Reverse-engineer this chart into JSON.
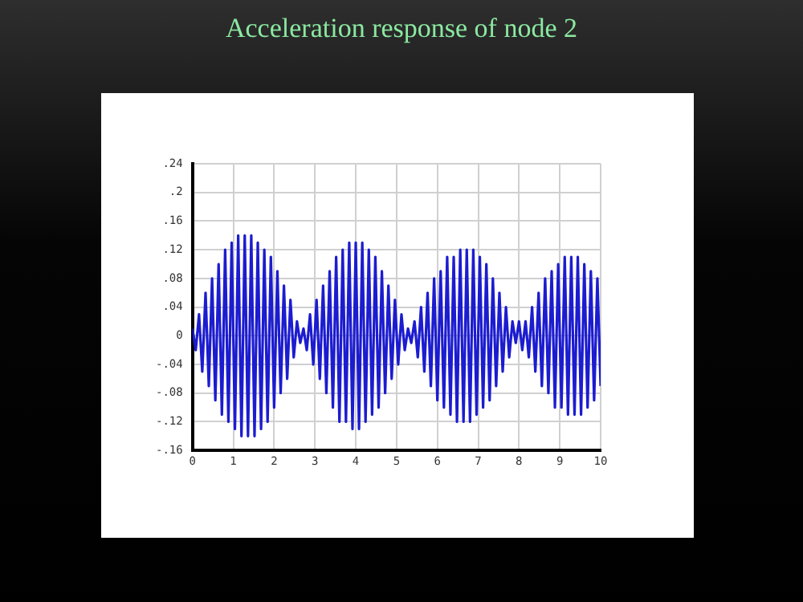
{
  "chart_data": {
    "type": "line",
    "title": "Acceleration response of node 2",
    "x": [
      0,
      0.08,
      0.16,
      0.24,
      0.32,
      0.4,
      0.48,
      0.56,
      0.64,
      0.72,
      0.8,
      0.88,
      0.96,
      1.04,
      1.12,
      1.2,
      1.28,
      1.36,
      1.44,
      1.52,
      1.6,
      1.68,
      1.76,
      1.84,
      1.92,
      2,
      2.08,
      2.16,
      2.24,
      2.32,
      2.4,
      2.48,
      2.56,
      2.64,
      2.72,
      2.8,
      2.88,
      2.96,
      3.04,
      3.12,
      3.2,
      3.28,
      3.36,
      3.44,
      3.52,
      3.6,
      3.68,
      3.76,
      3.84,
      3.92,
      4,
      4.08,
      4.16,
      4.24,
      4.32,
      4.4,
      4.48,
      4.56,
      4.64,
      4.72,
      4.8,
      4.88,
      4.96,
      5.04,
      5.12,
      5.2,
      5.28,
      5.36,
      5.44,
      5.52,
      5.6,
      5.68,
      5.76,
      5.84,
      5.92,
      6,
      6.08,
      6.16,
      6.24,
      6.32,
      6.4,
      6.48,
      6.56,
      6.64,
      6.72,
      6.8,
      6.88,
      6.96,
      7.04,
      7.12,
      7.2,
      7.28,
      7.36,
      7.44,
      7.52,
      7.6,
      7.68,
      7.76,
      7.84,
      7.92,
      8,
      8.08,
      8.16,
      8.24,
      8.32,
      8.4,
      8.48,
      8.56,
      8.64,
      8.72,
      8.8,
      8.88,
      8.96,
      9.04,
      9.12,
      9.2,
      9.28,
      9.36,
      9.44,
      9.52,
      9.6,
      9.68,
      9.76,
      9.84,
      9.92,
      10
    ],
    "series": [
      {
        "color": "#1c1cd0",
        "values": [
          0.01,
          -0.02,
          0.03,
          -0.05,
          0.06,
          -0.07,
          0.08,
          -0.09,
          0.1,
          -0.11,
          0.12,
          -0.12,
          0.13,
          -0.13,
          0.14,
          -0.14,
          0.14,
          -0.14,
          0.14,
          -0.14,
          0.13,
          -0.13,
          0.12,
          -0.12,
          0.11,
          -0.1,
          0.09,
          -0.08,
          0.07,
          -0.06,
          0.05,
          -0.03,
          0.02,
          -0.01,
          0.01,
          -0.02,
          0.03,
          -0.04,
          0.05,
          -0.06,
          0.07,
          -0.08,
          0.09,
          -0.1,
          0.11,
          -0.12,
          0.12,
          -0.12,
          0.13,
          -0.13,
          0.13,
          -0.13,
          0.13,
          -0.12,
          0.12,
          -0.11,
          0.11,
          -0.1,
          0.09,
          -0.08,
          0.07,
          -0.06,
          0.05,
          -0.04,
          0.03,
          -0.02,
          0.01,
          -0.01,
          0.02,
          -0.03,
          0.04,
          -0.05,
          0.06,
          -0.07,
          0.08,
          -0.09,
          0.09,
          -0.1,
          0.11,
          -0.11,
          0.11,
          -0.12,
          0.12,
          -0.12,
          0.12,
          -0.12,
          0.12,
          -0.11,
          0.11,
          -0.1,
          0.1,
          -0.09,
          0.08,
          -0.07,
          0.06,
          -0.05,
          0.04,
          -0.03,
          0.02,
          -0.01,
          0.02,
          -0.02,
          0.02,
          -0.03,
          0.04,
          -0.05,
          0.06,
          -0.07,
          0.08,
          -0.08,
          0.09,
          -0.1,
          0.1,
          -0.1,
          0.11,
          -0.11,
          0.11,
          -0.11,
          0.11,
          -0.11,
          0.1,
          -0.1,
          0.09,
          -0.09,
          0.08,
          -0.07
        ]
      }
    ],
    "xlim": [
      0,
      10
    ],
    "xticks": [
      0,
      1,
      2,
      3,
      4,
      5,
      6,
      7,
      8,
      9,
      10
    ],
    "ylim": [
      -0.16,
      0.24
    ],
    "yticks": [
      {
        "value": -0.16,
        "label": "-.16"
      },
      {
        "value": -0.12,
        "label": "-.12"
      },
      {
        "value": -0.08,
        "label": "-.08"
      },
      {
        "value": -0.04,
        "label": "-.04"
      },
      {
        "value": 0,
        "label": "0"
      },
      {
        "value": 0.04,
        "label": ".04"
      },
      {
        "value": 0.08,
        "label": ".08"
      },
      {
        "value": 0.12,
        "label": ".12"
      },
      {
        "value": 0.16,
        "label": ".16"
      },
      {
        "value": 0.2,
        "label": ".2"
      },
      {
        "value": 0.24,
        "label": ".24"
      }
    ],
    "grid": true,
    "legend": false,
    "marker": "none",
    "line_style": "solid"
  }
}
